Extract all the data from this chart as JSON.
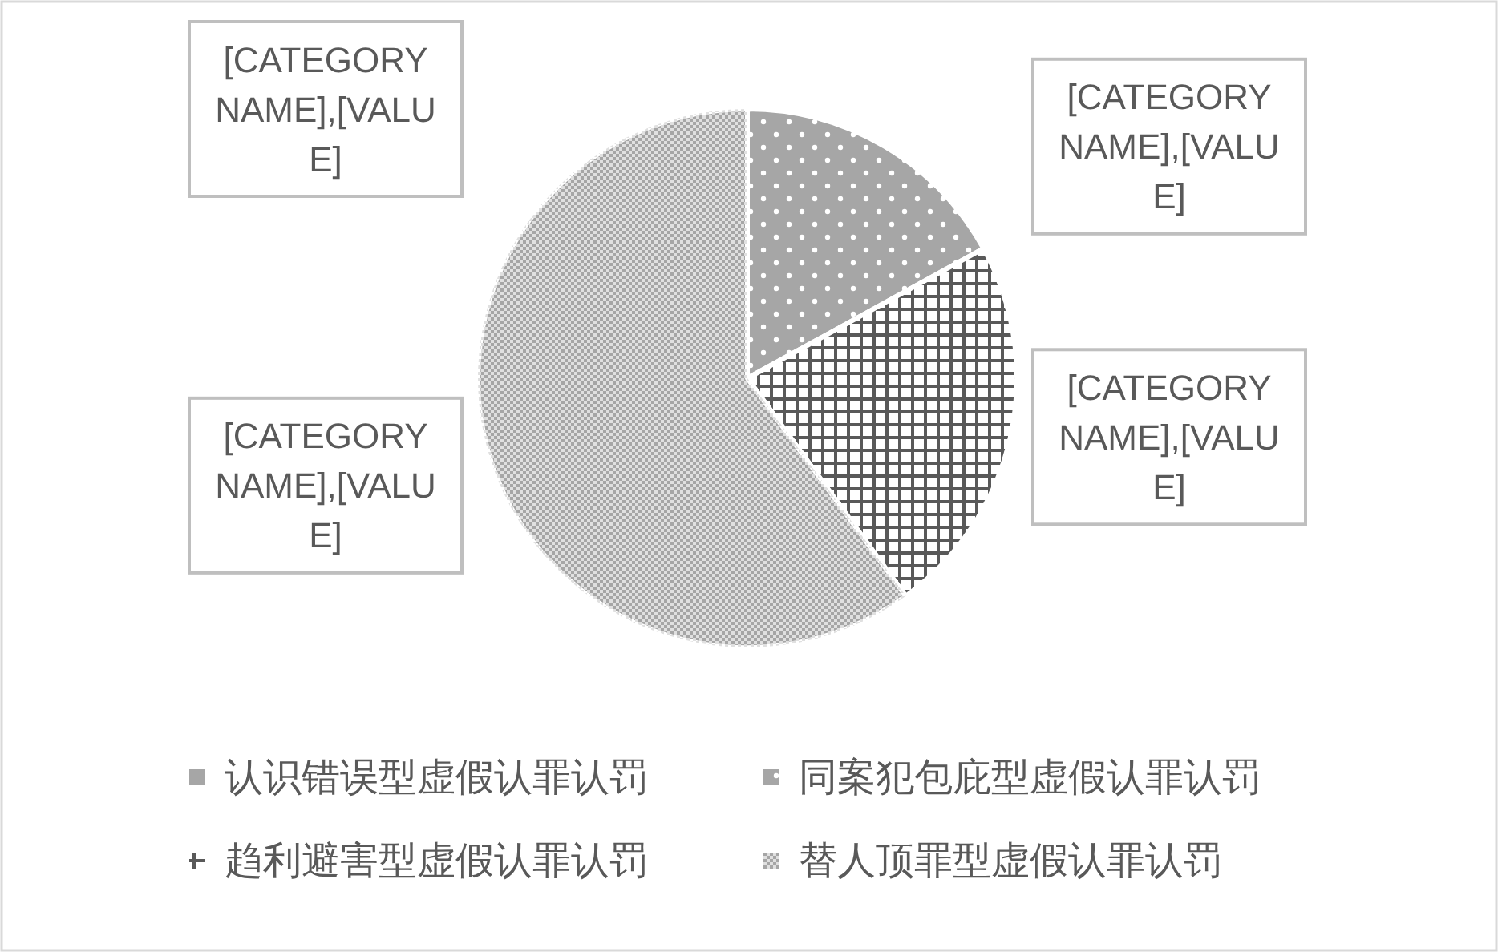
{
  "chart_data": {
    "type": "pie",
    "categories": [
      "认识错误型虚假认罪认罚",
      "同案犯包庇型虚假认罪认罚",
      "趋利避害型虚假认罪认罚",
      "替人顶罪型虚假认罪认罚"
    ],
    "values": [
      0,
      17,
      23,
      60
    ],
    "colors": [
      "#a6a6a6",
      "#a6a6a6",
      "#595959",
      "#a6a6a6"
    ],
    "value_labels": [
      "[CATEGORY NAME],[VALUE]",
      "[CATEGORY NAME],[VALUE]",
      "[CATEGORY NAME],[VALUE]",
      "[CATEGORY NAME],[VALUE]"
    ],
    "legend": "bottom"
  }
}
